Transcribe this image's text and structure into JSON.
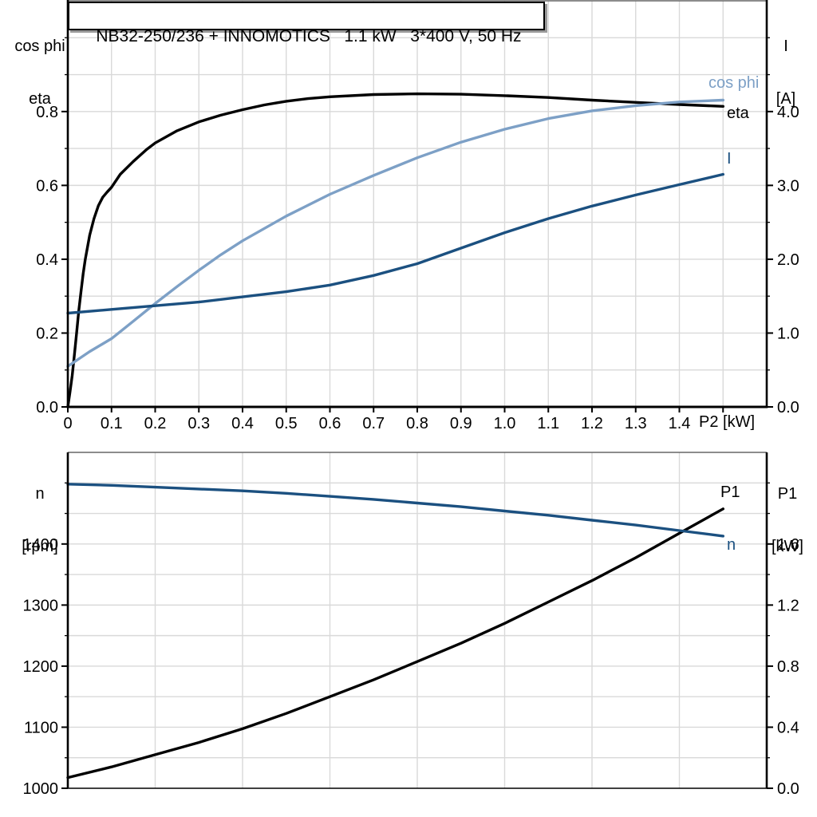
{
  "title": "NB32-250/236 + INNOMOTICS   1.1 kW   3*400 V, 50 Hz",
  "colors": {
    "black": "#000000",
    "light_blue": "#7DA0C6",
    "dark_blue": "#1B5080",
    "grid": "#D9D9D9",
    "frame": "#666666"
  },
  "labels": {
    "top_left_line1": "cos phi",
    "top_left_line2": "eta",
    "top_right_line1": "I",
    "top_right_line2": "[A]",
    "bottom_left_line1": "n",
    "bottom_left_line2": "[rpm]",
    "bottom_right_line1": "P1",
    "bottom_right_line2": "[kW]",
    "x_axis": "P2 [kW]",
    "curve_cos_phi": "cos phi",
    "curve_eta": "eta",
    "curve_I": "I",
    "curve_P1": "P1",
    "curve_n": "n"
  },
  "chart_data": [
    {
      "type": "line",
      "title": "NB32-250/236 + INNOMOTICS   1.1 kW   3*400 V, 50 Hz",
      "xlabel": "P2 [kW]",
      "x_range": [
        0,
        1.6
      ],
      "x_gridline_step": 0.1,
      "x_tick_step": 0.1,
      "x_labels": [
        {
          "v": 0,
          "t": "0"
        },
        {
          "v": 0.1,
          "t": "0.1"
        },
        {
          "v": 0.2,
          "t": "0.2"
        },
        {
          "v": 0.3,
          "t": "0.3"
        },
        {
          "v": 0.4,
          "t": "0.4"
        },
        {
          "v": 0.5,
          "t": "0.5"
        },
        {
          "v": 0.6,
          "t": "0.6"
        },
        {
          "v": 0.7,
          "t": "0.7"
        },
        {
          "v": 0.8,
          "t": "0.8"
        },
        {
          "v": 0.9,
          "t": "0.9"
        },
        {
          "v": 1.0,
          "t": "1.0"
        },
        {
          "v": 1.1,
          "t": "1.1"
        },
        {
          "v": 1.2,
          "t": "1.2"
        },
        {
          "v": 1.3,
          "t": "1.3"
        },
        {
          "v": 1.4,
          "t": "1.4"
        }
      ],
      "left_axis": {
        "title": "cos phi / eta",
        "range": [
          0,
          1.1
        ],
        "gridline_step": 0.1,
        "labels": [
          {
            "v": 0.0,
            "t": "0.0"
          },
          {
            "v": 0.2,
            "t": "0.2"
          },
          {
            "v": 0.4,
            "t": "0.4"
          },
          {
            "v": 0.6,
            "t": "0.6"
          },
          {
            "v": 0.8,
            "t": "0.8"
          }
        ]
      },
      "right_axis": {
        "title": "I [A]",
        "range": [
          0,
          5.5
        ],
        "tick_step": 0.5,
        "labels": [
          {
            "v": 0.0,
            "t": "0.0"
          },
          {
            "v": 1.0,
            "t": "1.0"
          },
          {
            "v": 2.0,
            "t": "2.0"
          },
          {
            "v": 3.0,
            "t": "3.0"
          },
          {
            "v": 4.0,
            "t": "4.0"
          }
        ]
      },
      "series": [
        {
          "name": "eta",
          "axis": "left",
          "color_key": "black",
          "points": [
            [
              0,
              0
            ],
            [
              0.005,
              0.04
            ],
            [
              0.01,
              0.085
            ],
            [
              0.015,
              0.14
            ],
            [
              0.02,
              0.2
            ],
            [
              0.025,
              0.26
            ],
            [
              0.03,
              0.31
            ],
            [
              0.035,
              0.36
            ],
            [
              0.04,
              0.4
            ],
            [
              0.05,
              0.465
            ],
            [
              0.06,
              0.51
            ],
            [
              0.07,
              0.545
            ],
            [
              0.08,
              0.568
            ],
            [
              0.09,
              0.582
            ],
            [
              0.1,
              0.595
            ],
            [
              0.12,
              0.63
            ],
            [
              0.15,
              0.665
            ],
            [
              0.18,
              0.697
            ],
            [
              0.2,
              0.715
            ],
            [
              0.25,
              0.748
            ],
            [
              0.3,
              0.772
            ],
            [
              0.35,
              0.79
            ],
            [
              0.4,
              0.805
            ],
            [
              0.45,
              0.818
            ],
            [
              0.5,
              0.828
            ],
            [
              0.55,
              0.835
            ],
            [
              0.6,
              0.84
            ],
            [
              0.7,
              0.846
            ],
            [
              0.8,
              0.848
            ],
            [
              0.9,
              0.847
            ],
            [
              1.0,
              0.843
            ],
            [
              1.1,
              0.838
            ],
            [
              1.2,
              0.831
            ],
            [
              1.3,
              0.825
            ],
            [
              1.4,
              0.819
            ],
            [
              1.5,
              0.814
            ]
          ]
        },
        {
          "name": "cos phi",
          "axis": "left",
          "color_key": "light_blue",
          "points": [
            [
              0,
              0.11
            ],
            [
              0.05,
              0.15
            ],
            [
              0.1,
              0.185
            ],
            [
              0.15,
              0.232
            ],
            [
              0.2,
              0.28
            ],
            [
              0.25,
              0.326
            ],
            [
              0.3,
              0.37
            ],
            [
              0.35,
              0.412
            ],
            [
              0.4,
              0.45
            ],
            [
              0.5,
              0.517
            ],
            [
              0.6,
              0.576
            ],
            [
              0.7,
              0.627
            ],
            [
              0.8,
              0.675
            ],
            [
              0.9,
              0.717
            ],
            [
              1.0,
              0.752
            ],
            [
              1.1,
              0.781
            ],
            [
              1.2,
              0.802
            ],
            [
              1.3,
              0.816
            ],
            [
              1.4,
              0.826
            ],
            [
              1.5,
              0.831
            ]
          ]
        },
        {
          "name": "I",
          "axis": "right",
          "color_key": "dark_blue",
          "points": [
            [
              0,
              1.27
            ],
            [
              0.1,
              1.32
            ],
            [
              0.2,
              1.37
            ],
            [
              0.3,
              1.42
            ],
            [
              0.4,
              1.49
            ],
            [
              0.5,
              1.56
            ],
            [
              0.6,
              1.65
            ],
            [
              0.7,
              1.78
            ],
            [
              0.8,
              1.94
            ],
            [
              0.9,
              2.15
            ],
            [
              1.0,
              2.36
            ],
            [
              1.1,
              2.55
            ],
            [
              1.2,
              2.72
            ],
            [
              1.3,
              2.87
            ],
            [
              1.4,
              3.01
            ],
            [
              1.5,
              3.15
            ]
          ]
        }
      ]
    },
    {
      "type": "line",
      "title": "",
      "xlabel": "",
      "x_range": [
        0,
        1.6
      ],
      "x_gridline_step": 0.2,
      "x_tick_step": null,
      "x_labels": [],
      "left_axis": {
        "title": "n [rpm]",
        "range": [
          1000,
          1550
        ],
        "gridline_step": 50,
        "labels": [
          {
            "v": 1000,
            "t": "1000"
          },
          {
            "v": 1100,
            "t": "1100"
          },
          {
            "v": 1200,
            "t": "1200"
          },
          {
            "v": 1300,
            "t": "1300"
          },
          {
            "v": 1400,
            "t": "1400"
          }
        ]
      },
      "right_axis": {
        "title": "P1 [kW]",
        "range": [
          0,
          2.2
        ],
        "tick_step": 0.2,
        "labels": [
          {
            "v": 0.0,
            "t": "0.0"
          },
          {
            "v": 0.4,
            "t": "0.4"
          },
          {
            "v": 0.8,
            "t": "0.8"
          },
          {
            "v": 1.2,
            "t": "1.2"
          },
          {
            "v": 1.6,
            "t": "1.6"
          }
        ]
      },
      "series": [
        {
          "name": "P1",
          "axis": "right",
          "color_key": "black",
          "points": [
            [
              0,
              0.07
            ],
            [
              0.1,
              0.14
            ],
            [
              0.2,
              0.22
            ],
            [
              0.3,
              0.3
            ],
            [
              0.4,
              0.39
            ],
            [
              0.5,
              0.49
            ],
            [
              0.6,
              0.6
            ],
            [
              0.7,
              0.71
            ],
            [
              0.8,
              0.83
            ],
            [
              0.9,
              0.95
            ],
            [
              1.0,
              1.08
            ],
            [
              1.1,
              1.22
            ],
            [
              1.2,
              1.36
            ],
            [
              1.3,
              1.51
            ],
            [
              1.4,
              1.67
            ],
            [
              1.5,
              1.83
            ]
          ]
        },
        {
          "name": "n",
          "axis": "left",
          "color_key": "dark_blue",
          "points": [
            [
              0,
              1498
            ],
            [
              0.1,
              1496
            ],
            [
              0.2,
              1493
            ],
            [
              0.3,
              1490
            ],
            [
              0.4,
              1487
            ],
            [
              0.5,
              1483
            ],
            [
              0.6,
              1478
            ],
            [
              0.7,
              1473
            ],
            [
              0.8,
              1467
            ],
            [
              0.9,
              1461
            ],
            [
              1.0,
              1454
            ],
            [
              1.1,
              1447
            ],
            [
              1.2,
              1439
            ],
            [
              1.3,
              1431
            ],
            [
              1.4,
              1422
            ],
            [
              1.5,
              1413
            ]
          ]
        }
      ]
    }
  ]
}
